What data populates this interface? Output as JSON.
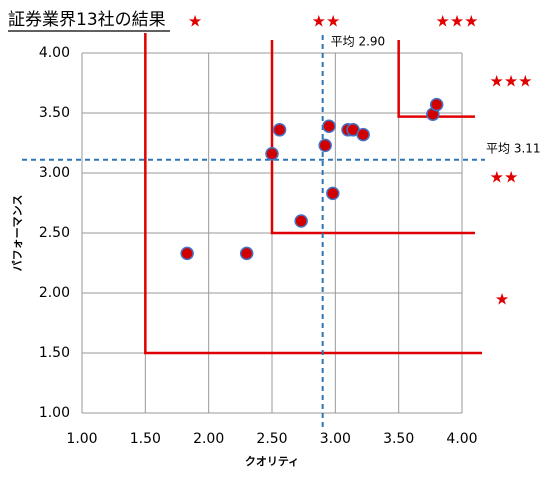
{
  "chart_data": {
    "type": "scatter",
    "title": "証券業界13社の結果",
    "x_label": "クオリティ",
    "y_label": "パフォーマンス",
    "xlim": [
      1,
      4
    ],
    "ylim": [
      1,
      4
    ],
    "xticks": [
      {
        "value": 1,
        "label": "1.00"
      },
      {
        "value": 1.5,
        "label": "1.50"
      },
      {
        "value": 2,
        "label": "2.00"
      },
      {
        "value": 2.5,
        "label": "2.50"
      },
      {
        "value": 3,
        "label": "3.00"
      },
      {
        "value": 3.5,
        "label": "3.50"
      },
      {
        "value": 4,
        "label": "4.00"
      }
    ],
    "yticks": [
      {
        "value": 1,
        "label": "1.00"
      },
      {
        "value": 1.5,
        "label": "1.50"
      },
      {
        "value": 2,
        "label": "2.00"
      },
      {
        "value": 2.5,
        "label": "2.50"
      },
      {
        "value": 3,
        "label": "3.00"
      },
      {
        "value": 3.5,
        "label": "3.50"
      },
      {
        "value": 4,
        "label": "4.00"
      }
    ],
    "grid": true,
    "color": "#d00000",
    "edge_color": "#4472c4",
    "x": [
      1.83,
      2.3,
      2.5,
      2.56,
      2.73,
      2.92,
      2.95,
      2.98,
      3.1,
      3.14,
      3.22,
      3.77,
      3.8
    ],
    "values": [
      2.33,
      2.33,
      3.16,
      3.36,
      2.6,
      3.23,
      3.39,
      2.83,
      3.36,
      3.36,
      3.32,
      3.49,
      3.57
    ],
    "x_mean": {
      "value": 2.9,
      "label": "平均 2.90"
    },
    "y_mean": {
      "value": 3.11,
      "label": "平均 3.11"
    },
    "mean_color": "#2e75b6",
    "regions": [
      {
        "x": 1.5,
        "y": 1.5
      },
      {
        "x": 2.5,
        "y": 2.5
      },
      {
        "x": 3.5,
        "y": 3.47
      }
    ],
    "region_color": "#e00000",
    "annotations": [
      "★",
      "★★",
      "★★★",
      "★★★",
      "★★",
      "★"
    ]
  }
}
